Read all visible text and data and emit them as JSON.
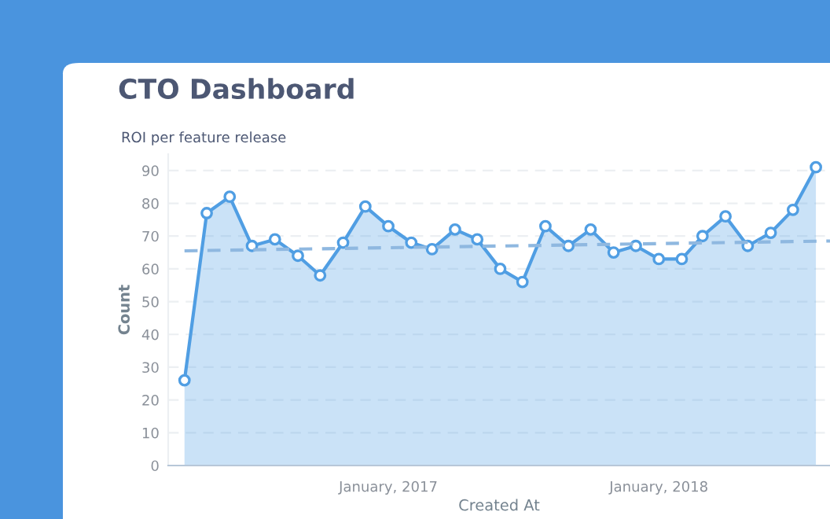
{
  "chart_data": {
    "type": "area",
    "title": "CTO Dashboard",
    "subtitle": "ROI per feature release",
    "xlabel": "Created At",
    "ylabel": "Count",
    "series": [
      {
        "color": "#509ee3",
        "x": [
          "2016-04",
          "2016-05",
          "2016-06",
          "2016-07",
          "2016-08",
          "2016-09",
          "2016-10",
          "2016-11",
          "2016-12",
          "2017-01",
          "2017-02",
          "2017-03",
          "2017-04",
          "2017-05",
          "2017-06",
          "2017-07",
          "2017-08",
          "2017-09",
          "2017-10",
          "2017-11",
          "2017-12",
          "2018-01",
          "2018-02",
          "2018-03",
          "2018-04",
          "2018-05",
          "2018-06",
          "2018-07",
          "2018-08"
        ],
        "values": [
          26,
          77,
          82,
          67,
          69,
          64,
          58,
          68,
          79,
          73,
          68,
          66,
          72,
          69,
          60,
          56,
          73,
          67,
          72,
          65,
          67,
          63,
          63,
          70,
          76,
          67,
          71,
          78,
          91
        ]
      },
      {
        "type": "line",
        "color": "#8fb8e0",
        "line_style": "dashed",
        "marker": "none",
        "x": [
          "2016-04",
          "2018-08-20"
        ],
        "values": [
          65.5,
          68.5
        ]
      }
    ],
    "marker": "circle",
    "line_style": "solid",
    "xlim": [
      "2016-03-10",
      "2018-08-20"
    ],
    "xticks": [
      {
        "value": "2017-01",
        "label": "January, 2017"
      },
      {
        "value": "2018-01",
        "label": "January, 2018"
      }
    ],
    "ylim": [
      0,
      95
    ],
    "yticks": [
      0,
      10,
      20,
      30,
      40,
      50,
      60,
      70,
      80,
      90
    ],
    "grid": "y",
    "legend": false
  }
}
